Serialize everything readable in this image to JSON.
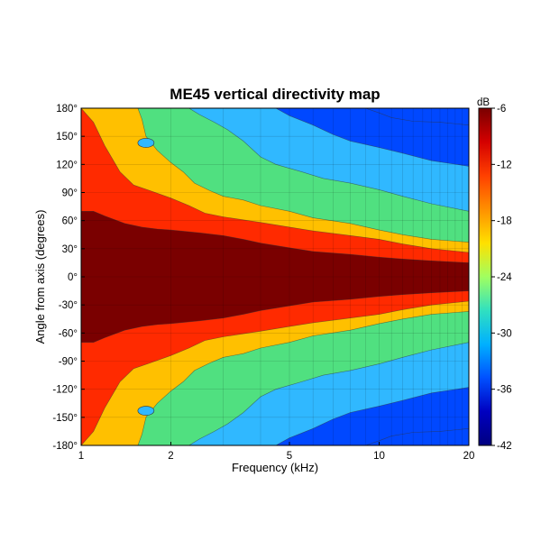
{
  "chart_data": {
    "type": "heatmap",
    "title": "ME45 vertical directivity map",
    "xlabel": "Frequency (kHz)",
    "ylabel": "Angle from axis (degrees)",
    "x_scale": "log",
    "xlim": [
      1,
      20
    ],
    "ylim": [
      -180,
      180
    ],
    "x_ticks": [
      {
        "value": 1,
        "label": "1"
      },
      {
        "value": 2,
        "label": "2"
      },
      {
        "value": 5,
        "label": "5"
      },
      {
        "value": 10,
        "label": "10"
      },
      {
        "value": 20,
        "label": "20"
      }
    ],
    "y_ticks": [
      {
        "value": 180,
        "label": "180°"
      },
      {
        "value": 150,
        "label": "150°"
      },
      {
        "value": 120,
        "label": "120°"
      },
      {
        "value": 90,
        "label": "90°"
      },
      {
        "value": 60,
        "label": "60°"
      },
      {
        "value": 30,
        "label": "30°"
      },
      {
        "value": 0,
        "label": "0°"
      },
      {
        "value": -30,
        "label": "-30°"
      },
      {
        "value": -60,
        "label": "-60°"
      },
      {
        "value": -90,
        "label": "-90°"
      },
      {
        "value": -120,
        "label": "-120°"
      },
      {
        "value": -150,
        "label": "-150°"
      },
      {
        "value": -180,
        "label": "-180°"
      }
    ],
    "grid": true,
    "colorbar": {
      "unit": "dB",
      "range": [
        -42,
        -6
      ],
      "ticks": [
        -6,
        -12,
        -18,
        -24,
        -30,
        -36,
        -42
      ]
    },
    "contour_levels": [
      {
        "level": -6,
        "color": "#7a0000"
      },
      {
        "level": -12,
        "color": "#ff2a00"
      },
      {
        "level": -18,
        "color": "#ffc000"
      },
      {
        "level": -24,
        "color": "#50e080"
      },
      {
        "level": -30,
        "color": "#30b8ff"
      },
      {
        "level": -36,
        "color": "#0048ff"
      },
      {
        "level": -42,
        "color": "#000090"
      }
    ],
    "contour_boundaries": [
      {
        "name": "-6 dB",
        "points": [
          [
            1,
            70
          ],
          [
            1.1,
            70
          ],
          [
            1.2,
            65
          ],
          [
            1.4,
            57
          ],
          [
            1.6,
            53
          ],
          [
            1.8,
            51
          ],
          [
            2,
            50
          ],
          [
            2.5,
            47
          ],
          [
            3,
            44
          ],
          [
            3.5,
            40
          ],
          [
            4,
            36
          ],
          [
            5,
            31
          ],
          [
            6,
            27
          ],
          [
            8,
            24
          ],
          [
            10,
            21
          ],
          [
            12,
            19
          ],
          [
            15,
            17
          ],
          [
            20,
            15
          ]
        ]
      },
      {
        "name": "-12 dB",
        "points": [
          [
            1,
            180
          ],
          [
            1.1,
            165
          ],
          [
            1.2,
            140
          ],
          [
            1.35,
            112
          ],
          [
            1.5,
            98
          ],
          [
            1.7,
            92
          ],
          [
            2,
            84
          ],
          [
            2.3,
            76
          ],
          [
            2.6,
            68
          ],
          [
            3,
            64
          ],
          [
            3.3,
            62
          ],
          [
            4,
            58
          ],
          [
            5,
            53
          ],
          [
            6,
            49
          ],
          [
            8,
            44
          ],
          [
            10,
            40
          ],
          [
            12,
            35
          ],
          [
            15,
            30
          ],
          [
            20,
            26
          ]
        ]
      },
      {
        "name": "-18 dB",
        "points": [
          [
            1.55,
            180
          ],
          [
            1.6,
            168
          ],
          [
            1.65,
            150
          ],
          [
            1.8,
            135
          ],
          [
            2,
            122
          ],
          [
            2.2,
            112
          ],
          [
            2.4,
            100
          ],
          [
            2.7,
            92
          ],
          [
            3,
            86
          ],
          [
            3.5,
            82
          ],
          [
            4,
            76
          ],
          [
            5,
            70
          ],
          [
            6,
            63
          ],
          [
            8,
            57
          ],
          [
            10,
            50
          ],
          [
            12,
            45
          ],
          [
            15,
            40
          ],
          [
            20,
            37
          ]
        ]
      },
      {
        "name": "-24 dB",
        "points": [
          [
            2.3,
            180
          ],
          [
            2.5,
            173
          ],
          [
            2.8,
            165
          ],
          [
            3.1,
            157
          ],
          [
            3.5,
            145
          ],
          [
            4,
            128
          ],
          [
            4.5,
            120
          ],
          [
            5.5,
            112
          ],
          [
            6.5,
            105
          ],
          [
            8,
            100
          ],
          [
            10,
            93
          ],
          [
            12,
            86
          ],
          [
            15,
            78
          ],
          [
            20,
            70
          ]
        ]
      },
      {
        "name": "-30 dB",
        "points": [
          [
            4.5,
            180
          ],
          [
            5,
            172
          ],
          [
            6,
            162
          ],
          [
            7,
            152
          ],
          [
            8,
            145
          ],
          [
            10,
            138
          ],
          [
            12,
            132
          ],
          [
            15,
            124
          ],
          [
            20,
            118
          ]
        ]
      },
      {
        "name": "-36 dB",
        "points": [
          [
            9,
            180
          ],
          [
            10,
            175
          ],
          [
            11,
            170
          ],
          [
            13,
            166
          ],
          [
            16,
            165
          ],
          [
            20,
            162
          ]
        ]
      }
    ],
    "island_notes": [
      {
        "label": "low-level pocket",
        "x": 1.65,
        "angle": 143,
        "level": -30
      },
      {
        "label": "low-level pocket",
        "x": 1.65,
        "angle": -143,
        "level": -30
      }
    ]
  }
}
